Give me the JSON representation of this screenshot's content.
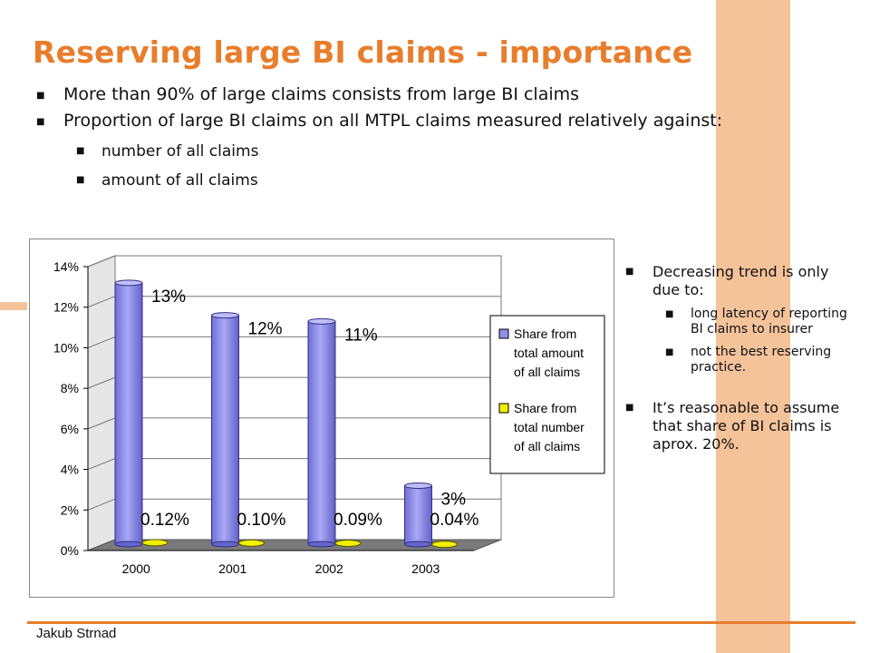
{
  "slide": {
    "title": "Reserving large BI claims - importance",
    "bullets": [
      "More than 90% of large claims consists from large BI claims",
      "Proportion of large BI claims on all MTPL claims measured relatively against:"
    ],
    "sub_bullets": [
      "number of all claims",
      "amount of all claims"
    ],
    "right_bullets": [
      {
        "text": "Decreasing trend is only due to:",
        "sub": [
          " long latency of reporting BI claims to insurer",
          "not the best reserving practice."
        ]
      },
      {
        "text": "It’s reasonable to assume that share of BI claims is aprox. 20%.",
        "sub": []
      }
    ],
    "author": "Jakub Strnad"
  },
  "colors": {
    "title": "#e87d2c",
    "accent_stripe": "#f5c39a",
    "series_amount": "#8f8fe8",
    "series_number": "#f0f000",
    "floor": "#7a7a7a"
  },
  "chart_data": {
    "type": "bar",
    "title": "",
    "xlabel": "",
    "ylabel": "",
    "categories": [
      "2000",
      "2001",
      "2002",
      "2003"
    ],
    "series": [
      {
        "name": "Share from total amount of all claims",
        "values": [
          13.2,
          11.6,
          11.3,
          3.2
        ],
        "labels": [
          "13%",
          "12%",
          "11%",
          "3%"
        ]
      },
      {
        "name": "Share from total number of all claims",
        "values": [
          0.12,
          0.1,
          0.09,
          0.04
        ],
        "labels": [
          "0.12%",
          "0.10%",
          "0.09%",
          "0.04%"
        ]
      }
    ],
    "ylim": [
      0,
      14
    ],
    "yticks": [
      "0%",
      "2%",
      "4%",
      "6%",
      "8%",
      "10%",
      "12%",
      "14%"
    ],
    "grid": true,
    "legend": "right"
  }
}
